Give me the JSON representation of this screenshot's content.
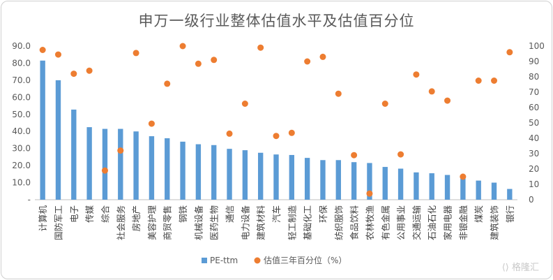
{
  "chart_data": {
    "type": "bar",
    "title": "申万一级行业整体估值水平及估值百分位",
    "categories": [
      "计算机",
      "国防军工",
      "电子",
      "传媒",
      "综合",
      "社会服务",
      "房地产",
      "美容护理",
      "商贸零售",
      "钢铁",
      "机械设备",
      "医药生物",
      "通信",
      "电力设备",
      "建筑材料",
      "汽车",
      "轻工制造",
      "基础化工",
      "环保",
      "纺织服饰",
      "食品饮料",
      "农林牧渔",
      "有色金属",
      "公用事业",
      "交通运输",
      "石油石化",
      "家用电器",
      "非银金融",
      "煤炭",
      "建筑装饰",
      "银行"
    ],
    "series": [
      {
        "name": "PE-ttm",
        "type": "bar",
        "axis": "left",
        "color": "#5b9bd5",
        "values": [
          81.5,
          70.0,
          52.8,
          42.5,
          41.5,
          41.5,
          40.0,
          37.2,
          36.0,
          34.0,
          32.5,
          32.0,
          29.8,
          29.0,
          27.5,
          26.5,
          26.2,
          24.5,
          23.2,
          23.2,
          22.0,
          21.5,
          19.2,
          18.2,
          16.0,
          15.5,
          14.5,
          12.5,
          11.2,
          10.0,
          6.3
        ]
      },
      {
        "name": "估值三年百分位（%）",
        "type": "scatter",
        "axis": "right",
        "color": "#ed7d31",
        "values": [
          97.5,
          94.5,
          82.0,
          84.0,
          19.0,
          32.0,
          95.5,
          49.5,
          75.5,
          100.0,
          88.5,
          91.0,
          43.0,
          62.5,
          99.0,
          41.5,
          43.5,
          90.0,
          93.0,
          69.0,
          29.0,
          4.0,
          62.5,
          29.5,
          81.5,
          70.5,
          64.5,
          15.0,
          77.5,
          77.5,
          96.0
        ]
      }
    ],
    "y_left": {
      "min": 0,
      "max": 90,
      "step": 10,
      "tick_labels": [
        "-",
        "10.0",
        "20.0",
        "30.0",
        "40.0",
        "50.0",
        "60.0",
        "70.0",
        "80.0",
        "90.0"
      ]
    },
    "y_right": {
      "min": 0,
      "max": 100,
      "step": 10,
      "tick_labels": [
        "0",
        "10",
        "20",
        "30",
        "40",
        "50",
        "60",
        "70",
        "80",
        "90",
        "100"
      ]
    },
    "grid": false,
    "legend_position": "bottom"
  },
  "watermark": "格隆汇"
}
